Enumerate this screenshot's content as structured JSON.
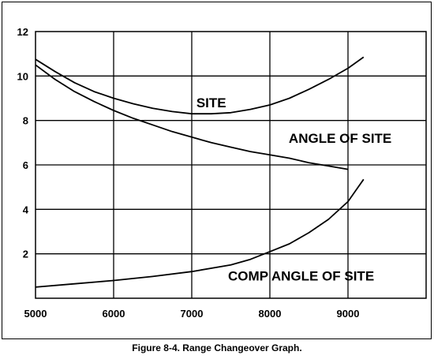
{
  "caption": "Figure 8-4.  Range Changeover Graph.",
  "chart_data": {
    "type": "line",
    "title": "",
    "xlabel": "",
    "ylabel": "",
    "xlim": [
      5000,
      10000
    ],
    "ylim": [
      0,
      12
    ],
    "grid": true,
    "x_ticks": [
      5000,
      6000,
      7000,
      8000,
      9000
    ],
    "y_ticks": [
      2,
      4,
      6,
      8,
      10,
      12
    ],
    "series": [
      {
        "name": "SITE",
        "points": [
          [
            5000,
            10.75
          ],
          [
            5250,
            10.2
          ],
          [
            5500,
            9.7
          ],
          [
            5750,
            9.3
          ],
          [
            6000,
            9.0
          ],
          [
            6250,
            8.75
          ],
          [
            6500,
            8.55
          ],
          [
            6750,
            8.4
          ],
          [
            7000,
            8.3
          ],
          [
            7250,
            8.3
          ],
          [
            7500,
            8.35
          ],
          [
            7750,
            8.5
          ],
          [
            8000,
            8.7
          ],
          [
            8250,
            9.0
          ],
          [
            8500,
            9.4
          ],
          [
            8750,
            9.85
          ],
          [
            9000,
            10.35
          ],
          [
            9200,
            10.85
          ]
        ]
      },
      {
        "name": "ANGLE OF SITE",
        "points": [
          [
            5000,
            10.5
          ],
          [
            5250,
            9.85
          ],
          [
            5500,
            9.3
          ],
          [
            5750,
            8.85
          ],
          [
            6000,
            8.45
          ],
          [
            6250,
            8.1
          ],
          [
            6500,
            7.8
          ],
          [
            6750,
            7.5
          ],
          [
            7000,
            7.25
          ],
          [
            7250,
            7.0
          ],
          [
            7500,
            6.8
          ],
          [
            7750,
            6.6
          ],
          [
            8000,
            6.45
          ],
          [
            8250,
            6.3
          ],
          [
            8500,
            6.1
          ],
          [
            8750,
            5.95
          ],
          [
            9000,
            5.8
          ]
        ]
      },
      {
        "name": "COMP ANGLE OF SITE",
        "points": [
          [
            5000,
            0.5
          ],
          [
            5500,
            0.65
          ],
          [
            6000,
            0.8
          ],
          [
            6500,
            0.98
          ],
          [
            7000,
            1.2
          ],
          [
            7500,
            1.5
          ],
          [
            7750,
            1.75
          ],
          [
            8000,
            2.1
          ],
          [
            8250,
            2.45
          ],
          [
            8500,
            2.95
          ],
          [
            8750,
            3.55
          ],
          [
            9000,
            4.35
          ],
          [
            9100,
            4.85
          ],
          [
            9200,
            5.35
          ]
        ]
      }
    ],
    "annotations": [
      {
        "text": "SITE",
        "x": 7250,
        "y": 8.6
      },
      {
        "text": "ANGLE OF SITE",
        "x": 8900,
        "y": 7.0
      },
      {
        "text": "COMP ANGLE OF SITE",
        "x": 8400,
        "y": 0.8
      }
    ]
  }
}
